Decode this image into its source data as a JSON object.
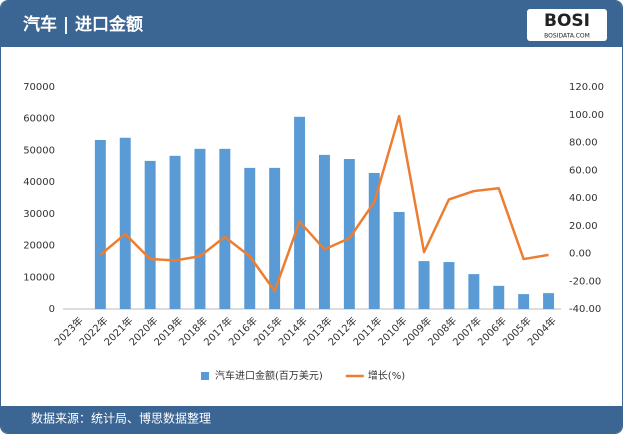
{
  "header": {
    "title": "汽车 | 进口金额",
    "logo": "BOSI",
    "logo_sub": "BOSIDATA.COM"
  },
  "footer": {
    "source": "数据来源：统计局、博思数据整理"
  },
  "chart_data": {
    "type": "bar-line",
    "categories": [
      "2023年",
      "2022年",
      "2021年",
      "2020年",
      "2019年",
      "2018年",
      "2017年",
      "2016年",
      "2015年",
      "2014年",
      "2013年",
      "2012年",
      "2011年",
      "2010年",
      "2009年",
      "2008年",
      "2007年",
      "2006年",
      "2005年",
      "2004年"
    ],
    "series": [
      {
        "name": "汽车进口金额(百万美元)",
        "color": "#5b9bd5",
        "type": "bar",
        "values": [
          null,
          53300,
          54000,
          46700,
          48300,
          50500,
          50500,
          44500,
          44500,
          60600,
          48600,
          47300,
          42900,
          30600,
          15100,
          14800,
          11000,
          7300,
          4700,
          5000
        ]
      },
      {
        "name": "增长(%)",
        "color": "#ed7d31",
        "type": "line",
        "axis": "y2",
        "values": [
          null,
          -1,
          14,
          -4,
          -5,
          -2,
          12,
          -2,
          -27,
          23,
          3,
          11,
          37,
          99,
          1,
          39,
          45,
          47,
          -4,
          -1
        ]
      }
    ],
    "ylim": [
      0,
      70000
    ],
    "yticks": [
      0,
      10000,
      20000,
      30000,
      40000,
      50000,
      60000,
      70000
    ],
    "y2lim": [
      -40,
      120
    ],
    "y2ticks": [
      {
        "value": -40,
        "label": "-40.00"
      },
      {
        "value": -20,
        "label": "-20.00"
      },
      {
        "value": 0,
        "label": "0.00"
      },
      {
        "value": 20,
        "label": "20.00"
      },
      {
        "value": 40,
        "label": "40.00"
      },
      {
        "value": 60,
        "label": "60.00"
      },
      {
        "value": 80,
        "label": "80.00"
      },
      {
        "value": 100,
        "label": "100.00"
      },
      {
        "value": 120,
        "label": "120.00"
      }
    ],
    "legend": "bottom"
  }
}
